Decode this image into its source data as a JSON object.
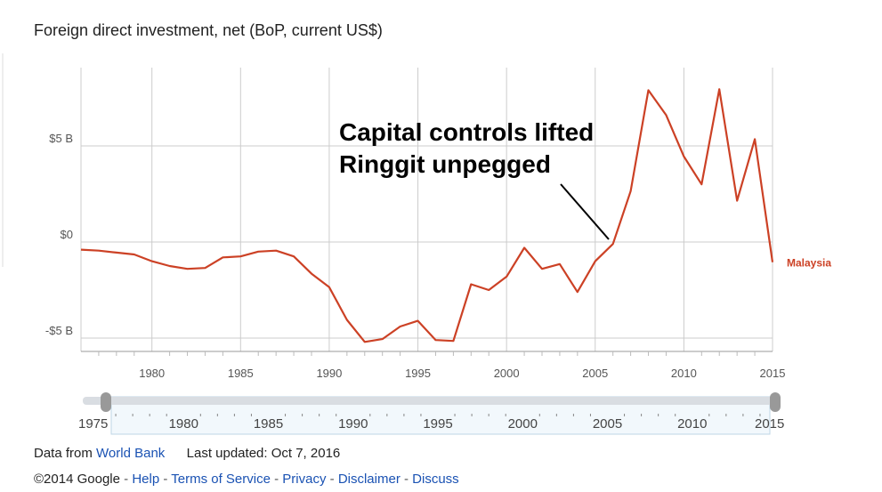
{
  "title": "Foreign direct investment, net (BoP, current US$)",
  "annotation": [
    "Capital controls lifted",
    "Ringgit unpegged"
  ],
  "slider": {
    "start_label": "1975",
    "end_label": "2015",
    "tick_labels": [
      "1980",
      "1985",
      "1990",
      "1995",
      "2000",
      "2005",
      "2010"
    ]
  },
  "footer": {
    "data_from_prefix": "Data from",
    "data_source_link": "World Bank",
    "last_updated": "Last updated: Oct 7, 2016",
    "copyright": "©2014 Google",
    "links": [
      "Help",
      "Terms of Service",
      "Privacy",
      "Disclaimer",
      "Discuss"
    ],
    "separator": " - "
  },
  "colors": {
    "series": "#cc4125",
    "grid": "#cccccc",
    "link": "#1a52b3"
  },
  "chart_data": {
    "type": "line",
    "title": "Foreign direct investment, net (BoP, current US$)",
    "xlabel": "",
    "ylabel": "",
    "xlim": [
      1976,
      2015
    ],
    "ylim": [
      -5.5,
      9
    ],
    "x_ticks": [
      1980,
      1985,
      1990,
      1995,
      2000,
      2005,
      2010,
      2015
    ],
    "x_tick_labels": [
      "1980",
      "1985",
      "1990",
      "1995",
      "2000",
      "2005",
      "2010",
      "2015"
    ],
    "y_ticks": [
      -5,
      0,
      5
    ],
    "y_tick_labels": [
      "-$5 B",
      "$0",
      "$5 B"
    ],
    "grid": true,
    "legend": "end-of-line label",
    "series": [
      {
        "name": "Malaysia",
        "x": [
          1976,
          1977,
          1978,
          1979,
          1980,
          1981,
          1982,
          1983,
          1984,
          1985,
          1986,
          1987,
          1988,
          1989,
          1990,
          1991,
          1992,
          1993,
          1994,
          1995,
          1996,
          1997,
          1998,
          1999,
          2000,
          2001,
          2002,
          2003,
          2004,
          2005,
          2006,
          2007,
          2008,
          2009,
          2010,
          2011,
          2012,
          2013,
          2014,
          2015
        ],
        "values": [
          -0.4,
          -0.45,
          -0.55,
          -0.65,
          -1.0,
          -1.25,
          -1.4,
          -1.35,
          -0.8,
          -0.75,
          -0.5,
          -0.45,
          -0.75,
          -1.65,
          -2.35,
          -4.05,
          -5.2,
          -5.05,
          -4.4,
          -4.1,
          -5.1,
          -5.15,
          -2.2,
          -2.5,
          -1.8,
          -0.3,
          -1.4,
          -1.15,
          -2.6,
          -1.0,
          -0.1,
          2.65,
          7.9,
          6.6,
          4.45,
          3.0,
          7.95,
          2.15,
          5.35,
          -1.05
        ]
      }
    ]
  }
}
